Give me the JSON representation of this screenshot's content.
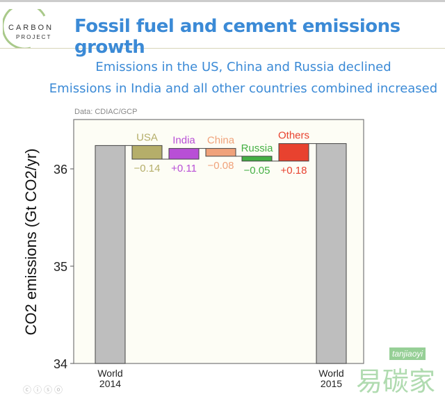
{
  "header": {
    "logo_line1": "CARBON",
    "logo_line2": "PROJECT",
    "title": "Fossil fuel and cement emissions growth"
  },
  "subtitle": [
    "Emissions in the US, China and Russia declined",
    "Emissions in India and all other countries combined increased"
  ],
  "source": "Data: CDIAC/GCP",
  "footer": {
    "license_icons": "cc-by-nc-sa-icons"
  },
  "watermark": {
    "text": "易碳家",
    "tag": "tanjiaoyi"
  },
  "chart_data": {
    "type": "waterfall",
    "ylabel": "CO2 emissions (Gt CO2/yr)",
    "ylim": [
      34,
      36.5
    ],
    "yticks": [
      34,
      35,
      36
    ],
    "start": {
      "label": [
        "World",
        "2014"
      ],
      "value": 36.24,
      "color": "#bebebe"
    },
    "end": {
      "label": [
        "World",
        "2015"
      ],
      "value": 36.26,
      "color": "#bebebe"
    },
    "steps": [
      {
        "name": "USA",
        "change": -0.14,
        "label": "−0.14",
        "color": "#b5ae6a",
        "text_color": "#b5ae6a"
      },
      {
        "name": "India",
        "change": 0.11,
        "label": "+0.11",
        "color": "#b84fd6",
        "text_color": "#b84fd6"
      },
      {
        "name": "China",
        "change": -0.08,
        "label": "−0.08",
        "color": "#f0a27a",
        "text_color": "#f0a27a"
      },
      {
        "name": "Russia",
        "change": -0.05,
        "label": "−0.05",
        "color": "#44b044",
        "text_color": "#44b044"
      },
      {
        "name": "Others",
        "change": 0.18,
        "label": "+0.18",
        "color": "#e8422f",
        "text_color": "#e8422f"
      }
    ]
  }
}
